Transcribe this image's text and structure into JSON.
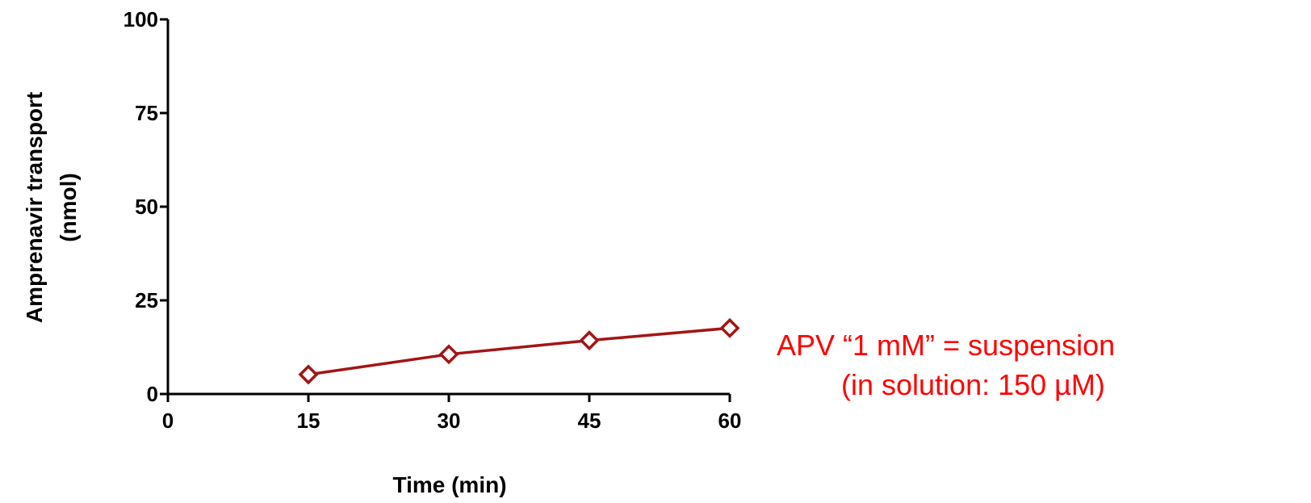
{
  "chart_data": {
    "type": "line",
    "title": "",
    "xlabel": "Time (min)",
    "ylabel_lines": [
      "Amprenavir transport",
      "(nmol)"
    ],
    "xlim": [
      0,
      60
    ],
    "ylim": [
      0,
      100
    ],
    "x_ticks": [
      0,
      15,
      30,
      45,
      60
    ],
    "y_ticks": [
      0,
      25,
      50,
      75,
      100
    ],
    "grid": false,
    "series": [
      {
        "x": [
          15,
          30,
          45,
          60
        ],
        "y": [
          5.2,
          10.6,
          14.3,
          17.6
        ],
        "color": "#a31515",
        "marker": "open-diamond"
      }
    ],
    "annotation": {
      "lines": [
        "APV “1 mM” = suspension",
        "(in solution: 150 µM)"
      ],
      "color": "#ff0000"
    }
  }
}
